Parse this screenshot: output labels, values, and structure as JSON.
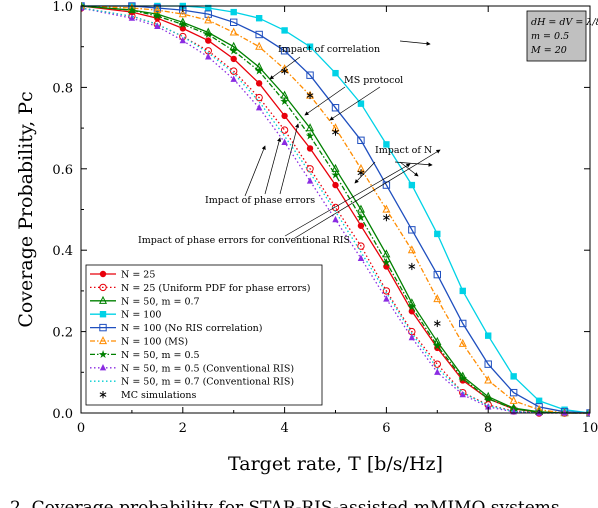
{
  "chart_data": {
    "type": "line",
    "xlabel": "Target rate, T [b/s/Hz]",
    "ylabel": "Coverage Probability, Pc",
    "xlim": [
      0,
      10
    ],
    "ylim": [
      0,
      1
    ],
    "xticks": [
      "0",
      "2",
      "4",
      "6",
      "8",
      "10"
    ],
    "yticks": [
      "0.0",
      "0.2",
      "0.4",
      "0.6",
      "0.8",
      "1.0"
    ],
    "grid": false,
    "legend_position": "bottom-left",
    "parameters": [
      "dH = dV = λ/8",
      "m = 0.5",
      "M = 20"
    ],
    "annotations": [
      "Impact of correlation",
      "MS protocol",
      "Impact of N",
      "Impact of phase errors",
      "Impact of phase errors for conventional RIS"
    ],
    "series": [
      {
        "name": "N = 25",
        "color": "#e8000b",
        "marker": "filled-circle",
        "line": "solid",
        "x": [
          0,
          1,
          1.5,
          2,
          2.5,
          3,
          3.5,
          4,
          4.5,
          5,
          5.5,
          6,
          6.5,
          7,
          7.5,
          8,
          8.5,
          9,
          9.5,
          10
        ],
        "y": [
          1.0,
          0.985,
          0.97,
          0.945,
          0.915,
          0.87,
          0.81,
          0.73,
          0.65,
          0.56,
          0.46,
          0.36,
          0.25,
          0.16,
          0.08,
          0.035,
          0.01,
          0.002,
          0.0,
          0.0
        ]
      },
      {
        "name": "N = 25 (Uniform PDF for phase errors)",
        "color": "#e8000b",
        "marker": "open-circle",
        "line": "dotted",
        "x": [
          0,
          1,
          1.5,
          2,
          2.5,
          3,
          3.5,
          4,
          4.5,
          5,
          5.5,
          6,
          6.5,
          7,
          7.5,
          8,
          8.5,
          9,
          9.5,
          10
        ],
        "y": [
          0.995,
          0.975,
          0.955,
          0.925,
          0.89,
          0.84,
          0.775,
          0.695,
          0.6,
          0.505,
          0.41,
          0.3,
          0.2,
          0.12,
          0.05,
          0.02,
          0.005,
          0.0,
          0.0,
          0.0
        ]
      },
      {
        "name": "N = 50, m = 0.7",
        "color": "#008000",
        "marker": "open-triangle",
        "line": "solid",
        "x": [
          0,
          1,
          1.5,
          2,
          2.5,
          3,
          3.5,
          4,
          4.5,
          5,
          5.5,
          6,
          6.5,
          7,
          7.5,
          8,
          8.5,
          9,
          9.5,
          10
        ],
        "y": [
          1.0,
          0.99,
          0.98,
          0.96,
          0.935,
          0.9,
          0.85,
          0.78,
          0.7,
          0.6,
          0.5,
          0.39,
          0.27,
          0.175,
          0.09,
          0.04,
          0.012,
          0.003,
          0.0,
          0.0
        ]
      },
      {
        "name": "N = 100",
        "color": "#00d2e6",
        "marker": "filled-square",
        "line": "solid",
        "x": [
          0,
          1,
          1.5,
          2,
          2.5,
          3,
          3.5,
          4,
          4.5,
          5,
          5.5,
          6,
          6.5,
          7,
          7.5,
          8,
          8.5,
          9,
          9.5,
          10
        ],
        "y": [
          1.0,
          1.0,
          1.0,
          1.0,
          0.995,
          0.985,
          0.97,
          0.94,
          0.9,
          0.835,
          0.76,
          0.66,
          0.56,
          0.44,
          0.3,
          0.19,
          0.09,
          0.03,
          0.008,
          0.0
        ]
      },
      {
        "name": "N = 100 (No RIS correlation)",
        "color": "#1f4fbf",
        "marker": "open-square",
        "line": "solid",
        "x": [
          0,
          1,
          1.5,
          2,
          2.5,
          3,
          3.5,
          4,
          4.5,
          5,
          5.5,
          6,
          6.5,
          7,
          7.5,
          8,
          8.5,
          9,
          9.5,
          10
        ],
        "y": [
          1.0,
          1.0,
          0.995,
          0.99,
          0.98,
          0.96,
          0.93,
          0.89,
          0.83,
          0.75,
          0.67,
          0.56,
          0.45,
          0.34,
          0.22,
          0.12,
          0.05,
          0.015,
          0.003,
          0.0
        ]
      },
      {
        "name": "N = 100 (MS)",
        "color": "#ff8c00",
        "marker": "open-triangle",
        "line": "dash-dot",
        "x": [
          0,
          1,
          1.5,
          2,
          2.5,
          3,
          3.5,
          4,
          4.5,
          5,
          5.5,
          6,
          6.5,
          7,
          7.5,
          8,
          8.5,
          9,
          9.5,
          10
        ],
        "y": [
          1.0,
          0.995,
          0.99,
          0.98,
          0.965,
          0.935,
          0.9,
          0.845,
          0.78,
          0.7,
          0.6,
          0.5,
          0.4,
          0.28,
          0.17,
          0.08,
          0.03,
          0.008,
          0.0,
          0.0
        ]
      },
      {
        "name": "N = 50, m = 0.5",
        "color": "#008000",
        "marker": "star",
        "line": "dash-dot",
        "x": [
          0,
          1,
          1.5,
          2,
          2.5,
          3,
          3.5,
          4,
          4.5,
          5,
          5.5,
          6,
          6.5,
          7,
          7.5,
          8,
          8.5,
          9,
          9.5,
          10
        ],
        "y": [
          1.0,
          0.99,
          0.975,
          0.955,
          0.93,
          0.89,
          0.84,
          0.765,
          0.68,
          0.585,
          0.48,
          0.37,
          0.26,
          0.165,
          0.085,
          0.035,
          0.01,
          0.002,
          0.0,
          0.0
        ]
      },
      {
        "name": "N = 50, m = 0.5 (Conventional RIS)",
        "color": "#8a2be2",
        "marker": "filled-triangle",
        "line": "dotted",
        "x": [
          0,
          1,
          1.5,
          2,
          2.5,
          3,
          3.5,
          4,
          4.5,
          5,
          5.5,
          6,
          6.5,
          7,
          7.5,
          8,
          8.5,
          9,
          9.5,
          10
        ],
        "y": [
          0.995,
          0.97,
          0.95,
          0.915,
          0.875,
          0.82,
          0.75,
          0.665,
          0.57,
          0.475,
          0.38,
          0.28,
          0.185,
          0.1,
          0.045,
          0.015,
          0.003,
          0.0,
          0.0,
          0.0
        ]
      },
      {
        "name": "N = 50, m = 0.7 (Conventional RIS)",
        "color": "#00ced1",
        "marker": "none",
        "line": "dotted",
        "x": [
          0,
          1,
          1.5,
          2,
          2.5,
          3,
          3.5,
          4,
          4.5,
          5,
          5.5,
          6,
          6.5,
          7,
          7.5,
          8,
          8.5,
          9,
          9.5,
          10
        ],
        "y": [
          0.995,
          0.975,
          0.955,
          0.925,
          0.885,
          0.835,
          0.765,
          0.68,
          0.59,
          0.495,
          0.395,
          0.295,
          0.195,
          0.11,
          0.05,
          0.018,
          0.004,
          0.0,
          0.0,
          0.0
        ]
      },
      {
        "name": "MC simulations",
        "color": "#000000",
        "marker": "asterisk",
        "line": "none",
        "x": [
          4,
          4.5,
          5,
          5.5,
          6,
          6.5,
          7
        ],
        "y": [
          0.84,
          0.78,
          0.69,
          0.59,
          0.48,
          0.36,
          0.22
        ]
      }
    ]
  },
  "caption": "2. Coverage probability for STAR-RIS-assisted mMIMO systems"
}
